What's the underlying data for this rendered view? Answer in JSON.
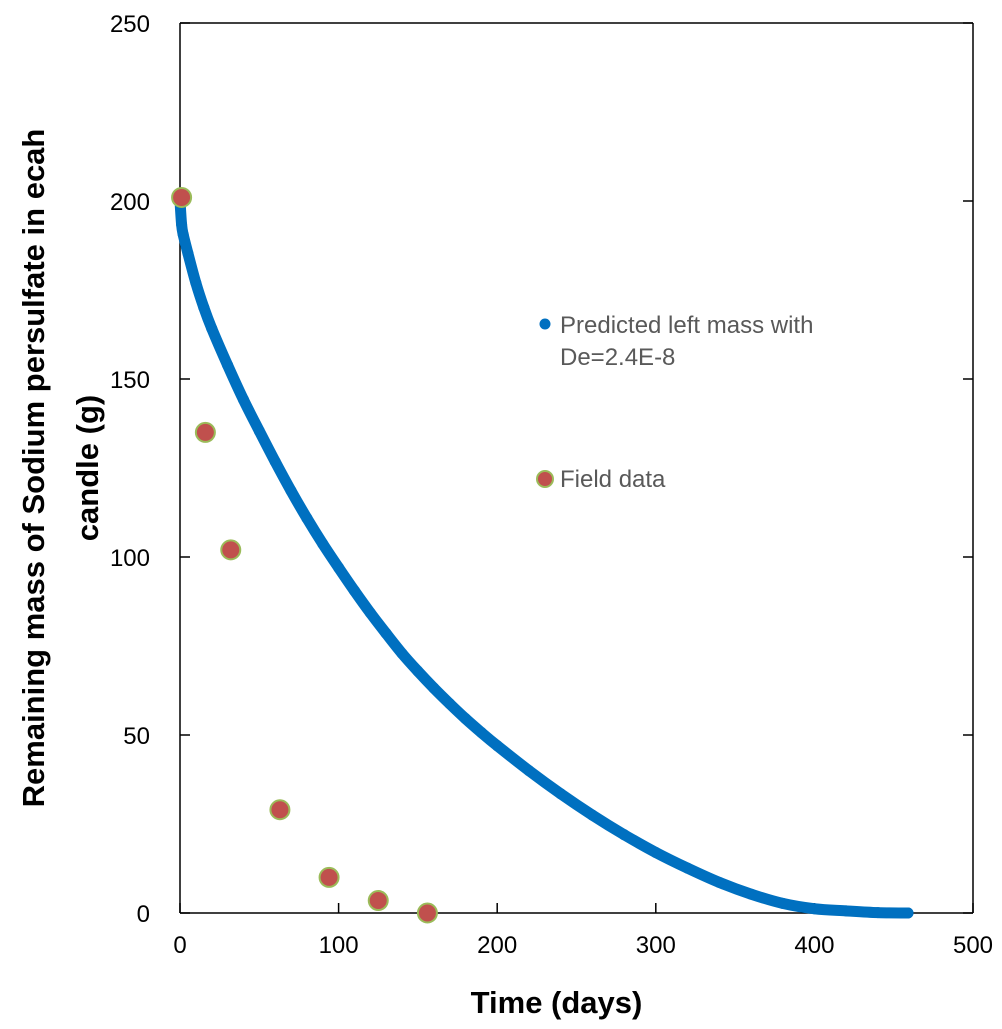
{
  "chart_data": {
    "type": "scatter",
    "xlabel": "Time (days)",
    "ylabel": [
      "Remaining mass of Sodium persulfate in ecah",
      "candle (g)"
    ],
    "xlim": [
      0,
      500
    ],
    "ylim": [
      0,
      250
    ],
    "x_ticks": [
      0,
      100,
      200,
      300,
      400,
      500
    ],
    "y_ticks": [
      0,
      50,
      100,
      150,
      200,
      250
    ],
    "grid": false,
    "legend_position": "right-middle",
    "colors": {
      "predicted": "#0070C0",
      "field_fill": "#C0504D",
      "field_edge": "#9BBB59",
      "legend_text": "#595959",
      "axis": "#000000"
    },
    "series": [
      {
        "name": "Predicted left mass with De=2.4E-8",
        "legend_lines": [
          "Predicted left mass with",
          "De=2.4E-8"
        ],
        "marker": "dense-dot-curve",
        "x": [
          0,
          1,
          2,
          5,
          10,
          15,
          20,
          30,
          40,
          50,
          60,
          70,
          80,
          90,
          100,
          110,
          120,
          130,
          140,
          150,
          160,
          170,
          180,
          190,
          200,
          220,
          240,
          260,
          280,
          300,
          320,
          340,
          360,
          380,
          400,
          420,
          440,
          459
        ],
        "y": [
          200,
          193.4,
          190.6,
          185.3,
          177.0,
          170.1,
          164.2,
          153.9,
          144.2,
          135.4,
          126.8,
          118.6,
          110.9,
          103.7,
          97.0,
          90.5,
          84.3,
          78.5,
          72.9,
          67.9,
          63.2,
          58.8,
          54.6,
          50.7,
          47.0,
          40.0,
          33.5,
          27.5,
          22.0,
          17.0,
          12.6,
          8.6,
          5.3,
          2.7,
          1.2,
          0.6,
          0.1,
          0
        ]
      },
      {
        "name": "Field data",
        "legend_lines": [
          "Field data"
        ],
        "marker": "circle",
        "x": [
          1,
          16,
          32,
          63,
          94,
          125,
          156
        ],
        "y": [
          201,
          135,
          102,
          29,
          10,
          3.5,
          0
        ]
      }
    ]
  }
}
